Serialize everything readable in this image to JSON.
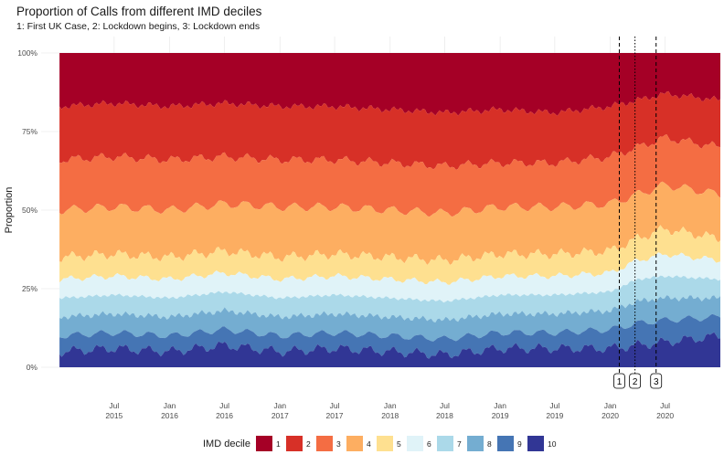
{
  "chart_data": {
    "type": "area",
    "stacked": true,
    "normalized": true,
    "title": "Proportion of Calls from different IMD deciles",
    "subtitle": "1: First UK Case, 2: Lockdown begins, 3: Lockdown ends",
    "ylabel": "Proportion",
    "xlabel": "",
    "xlim": [
      "2014-11-01",
      "2020-12-31"
    ],
    "ylim": [
      0,
      1
    ],
    "y_ticks": [
      {
        "value": 0,
        "label": "0%"
      },
      {
        "value": 0.25,
        "label": "25%"
      },
      {
        "value": 0.5,
        "label": "50%"
      },
      {
        "value": 0.75,
        "label": "75%"
      },
      {
        "value": 1,
        "label": "100%"
      }
    ],
    "x_ticks": [
      {
        "date": "2015-07-01",
        "label": "Jul",
        "year": "2015"
      },
      {
        "date": "2016-01-01",
        "label": "Jan",
        "year": "2016"
      },
      {
        "date": "2016-07-01",
        "label": "Jul",
        "year": "2016"
      },
      {
        "date": "2017-01-01",
        "label": "Jan",
        "year": "2017"
      },
      {
        "date": "2017-07-01",
        "label": "Jul",
        "year": "2017"
      },
      {
        "date": "2018-01-01",
        "label": "Jan",
        "year": "2018"
      },
      {
        "date": "2018-07-01",
        "label": "Jul",
        "year": "2018"
      },
      {
        "date": "2019-01-01",
        "label": "Jan",
        "year": "2019"
      },
      {
        "date": "2019-07-01",
        "label": "Jul",
        "year": "2019"
      },
      {
        "date": "2020-01-01",
        "label": "Jan",
        "year": "2020"
      },
      {
        "date": "2020-07-01",
        "label": "Jul",
        "year": "2020"
      }
    ],
    "grid": true,
    "legend": {
      "title": "IMD decile",
      "placement": "bottom"
    },
    "events": [
      {
        "label": "1",
        "date": "2020-01-31",
        "linestyle": "dashed"
      },
      {
        "label": "2",
        "date": "2020-03-23",
        "linestyle": "dotted"
      },
      {
        "label": "3",
        "date": "2020-06-01",
        "linestyle": "dashed"
      }
    ],
    "x": [
      "2015-01-01",
      "2015-07-01",
      "2016-01-01",
      "2016-07-01",
      "2017-01-01",
      "2017-07-01",
      "2018-01-01",
      "2018-07-01",
      "2019-01-01",
      "2019-07-01",
      "2020-01-01",
      "2020-04-01",
      "2020-07-01",
      "2020-12-31"
    ],
    "series": [
      {
        "name": "1",
        "color": "#a50026",
        "values": [
          0.17,
          0.16,
          0.17,
          0.16,
          0.17,
          0.17,
          0.18,
          0.19,
          0.18,
          0.19,
          0.17,
          0.15,
          0.13,
          0.15
        ]
      },
      {
        "name": "2",
        "color": "#d73027",
        "values": [
          0.17,
          0.17,
          0.17,
          0.17,
          0.17,
          0.17,
          0.17,
          0.17,
          0.17,
          0.16,
          0.16,
          0.15,
          0.14,
          0.15
        ]
      },
      {
        "name": "3",
        "color": "#f46d43",
        "values": [
          0.16,
          0.16,
          0.16,
          0.15,
          0.15,
          0.15,
          0.15,
          0.15,
          0.14,
          0.14,
          0.15,
          0.15,
          0.15,
          0.15
        ]
      },
      {
        "name": "4",
        "color": "#fdae61",
        "values": [
          0.15,
          0.15,
          0.15,
          0.15,
          0.16,
          0.15,
          0.15,
          0.15,
          0.15,
          0.15,
          0.15,
          0.14,
          0.14,
          0.14
        ]
      },
      {
        "name": "5",
        "color": "#fee090",
        "values": [
          0.07,
          0.07,
          0.07,
          0.07,
          0.07,
          0.07,
          0.07,
          0.07,
          0.07,
          0.07,
          0.07,
          0.07,
          0.08,
          0.07
        ]
      },
      {
        "name": "6",
        "color": "#e0f3f8",
        "values": [
          0.06,
          0.06,
          0.06,
          0.06,
          0.06,
          0.06,
          0.06,
          0.06,
          0.06,
          0.06,
          0.06,
          0.06,
          0.07,
          0.06
        ]
      },
      {
        "name": "7",
        "color": "#abd9e9",
        "values": [
          0.06,
          0.06,
          0.06,
          0.06,
          0.06,
          0.06,
          0.06,
          0.06,
          0.06,
          0.06,
          0.06,
          0.07,
          0.07,
          0.06
        ]
      },
      {
        "name": "8",
        "color": "#74add1",
        "values": [
          0.06,
          0.06,
          0.06,
          0.06,
          0.06,
          0.06,
          0.06,
          0.06,
          0.06,
          0.06,
          0.06,
          0.07,
          0.07,
          0.06
        ]
      },
      {
        "name": "9",
        "color": "#4575b4",
        "values": [
          0.05,
          0.05,
          0.05,
          0.05,
          0.05,
          0.05,
          0.05,
          0.05,
          0.05,
          0.05,
          0.06,
          0.07,
          0.07,
          0.06
        ]
      },
      {
        "name": "10",
        "color": "#313695",
        "values": [
          0.05,
          0.05,
          0.05,
          0.05,
          0.05,
          0.05,
          0.05,
          0.05,
          0.05,
          0.05,
          0.06,
          0.07,
          0.07,
          0.06
        ]
      }
    ]
  }
}
